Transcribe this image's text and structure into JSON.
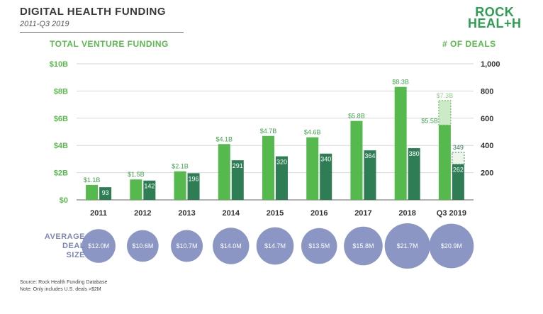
{
  "header": {
    "title": "DIGITAL HEALTH FUNDING",
    "subtitle": "2011-Q3 2019",
    "logo_line1": "ROCK",
    "logo_line2": "HEAL+H"
  },
  "footer": {
    "source": "Source: Rock Health Funding Database",
    "note": "Note: Only includes U.S. deals >$2M"
  },
  "colors": {
    "funding": "#55b94e",
    "deals": "#2e7d55",
    "bubble": "#8b96c4",
    "projection": "#cdeac7"
  },
  "chart_data": {
    "type": "bar",
    "left_axis_title": "TOTAL VENTURE FUNDING",
    "right_axis_title": "# OF DEALS",
    "categories": [
      "2011",
      "2012",
      "2013",
      "2014",
      "2015",
      "2016",
      "2017",
      "2018",
      "Q3 2019"
    ],
    "left_ticks": [
      "$0",
      "$2B",
      "$4B",
      "$6B",
      "$8B",
      "$10B"
    ],
    "right_ticks": [
      "200",
      "400",
      "600",
      "800",
      "1,000"
    ],
    "ylim_left": [
      0,
      10
    ],
    "ylim_right": [
      0,
      1000
    ],
    "series": [
      {
        "name": "Total Venture Funding",
        "axis": "left",
        "values": [
          1.1,
          1.5,
          2.1,
          4.1,
          4.7,
          4.6,
          5.8,
          8.3,
          5.5
        ],
        "labels": [
          "$1.1B",
          "$1.5B",
          "$2.1B",
          "$4.1B",
          "$4.7B",
          "$4.6B",
          "$5.8B",
          "$8.3B",
          "$5.5B"
        ]
      },
      {
        "name": "# of Deals",
        "axis": "right",
        "values": [
          93,
          142,
          196,
          291,
          320,
          340,
          364,
          380,
          262
        ],
        "labels": [
          "93",
          "142",
          "196",
          "291",
          "320",
          "340",
          "364",
          "380",
          "262"
        ]
      }
    ],
    "projection": {
      "category": "Q3 2019",
      "funding_value": 7.3,
      "funding_label": "$7.3B",
      "deals_value": 349,
      "deals_label": "349"
    },
    "bubbles": {
      "title_lines": [
        "AVERAGE",
        "DEAL",
        "SIZE"
      ],
      "values": [
        12.0,
        10.6,
        10.7,
        14.0,
        14.7,
        13.5,
        15.8,
        21.7,
        20.9
      ],
      "labels": [
        "$12.0M",
        "$10.6M",
        "$10.7M",
        "$14.0M",
        "$14.7M",
        "$13.5M",
        "$15.8M",
        "$21.7M",
        "$20.9M"
      ]
    }
  }
}
